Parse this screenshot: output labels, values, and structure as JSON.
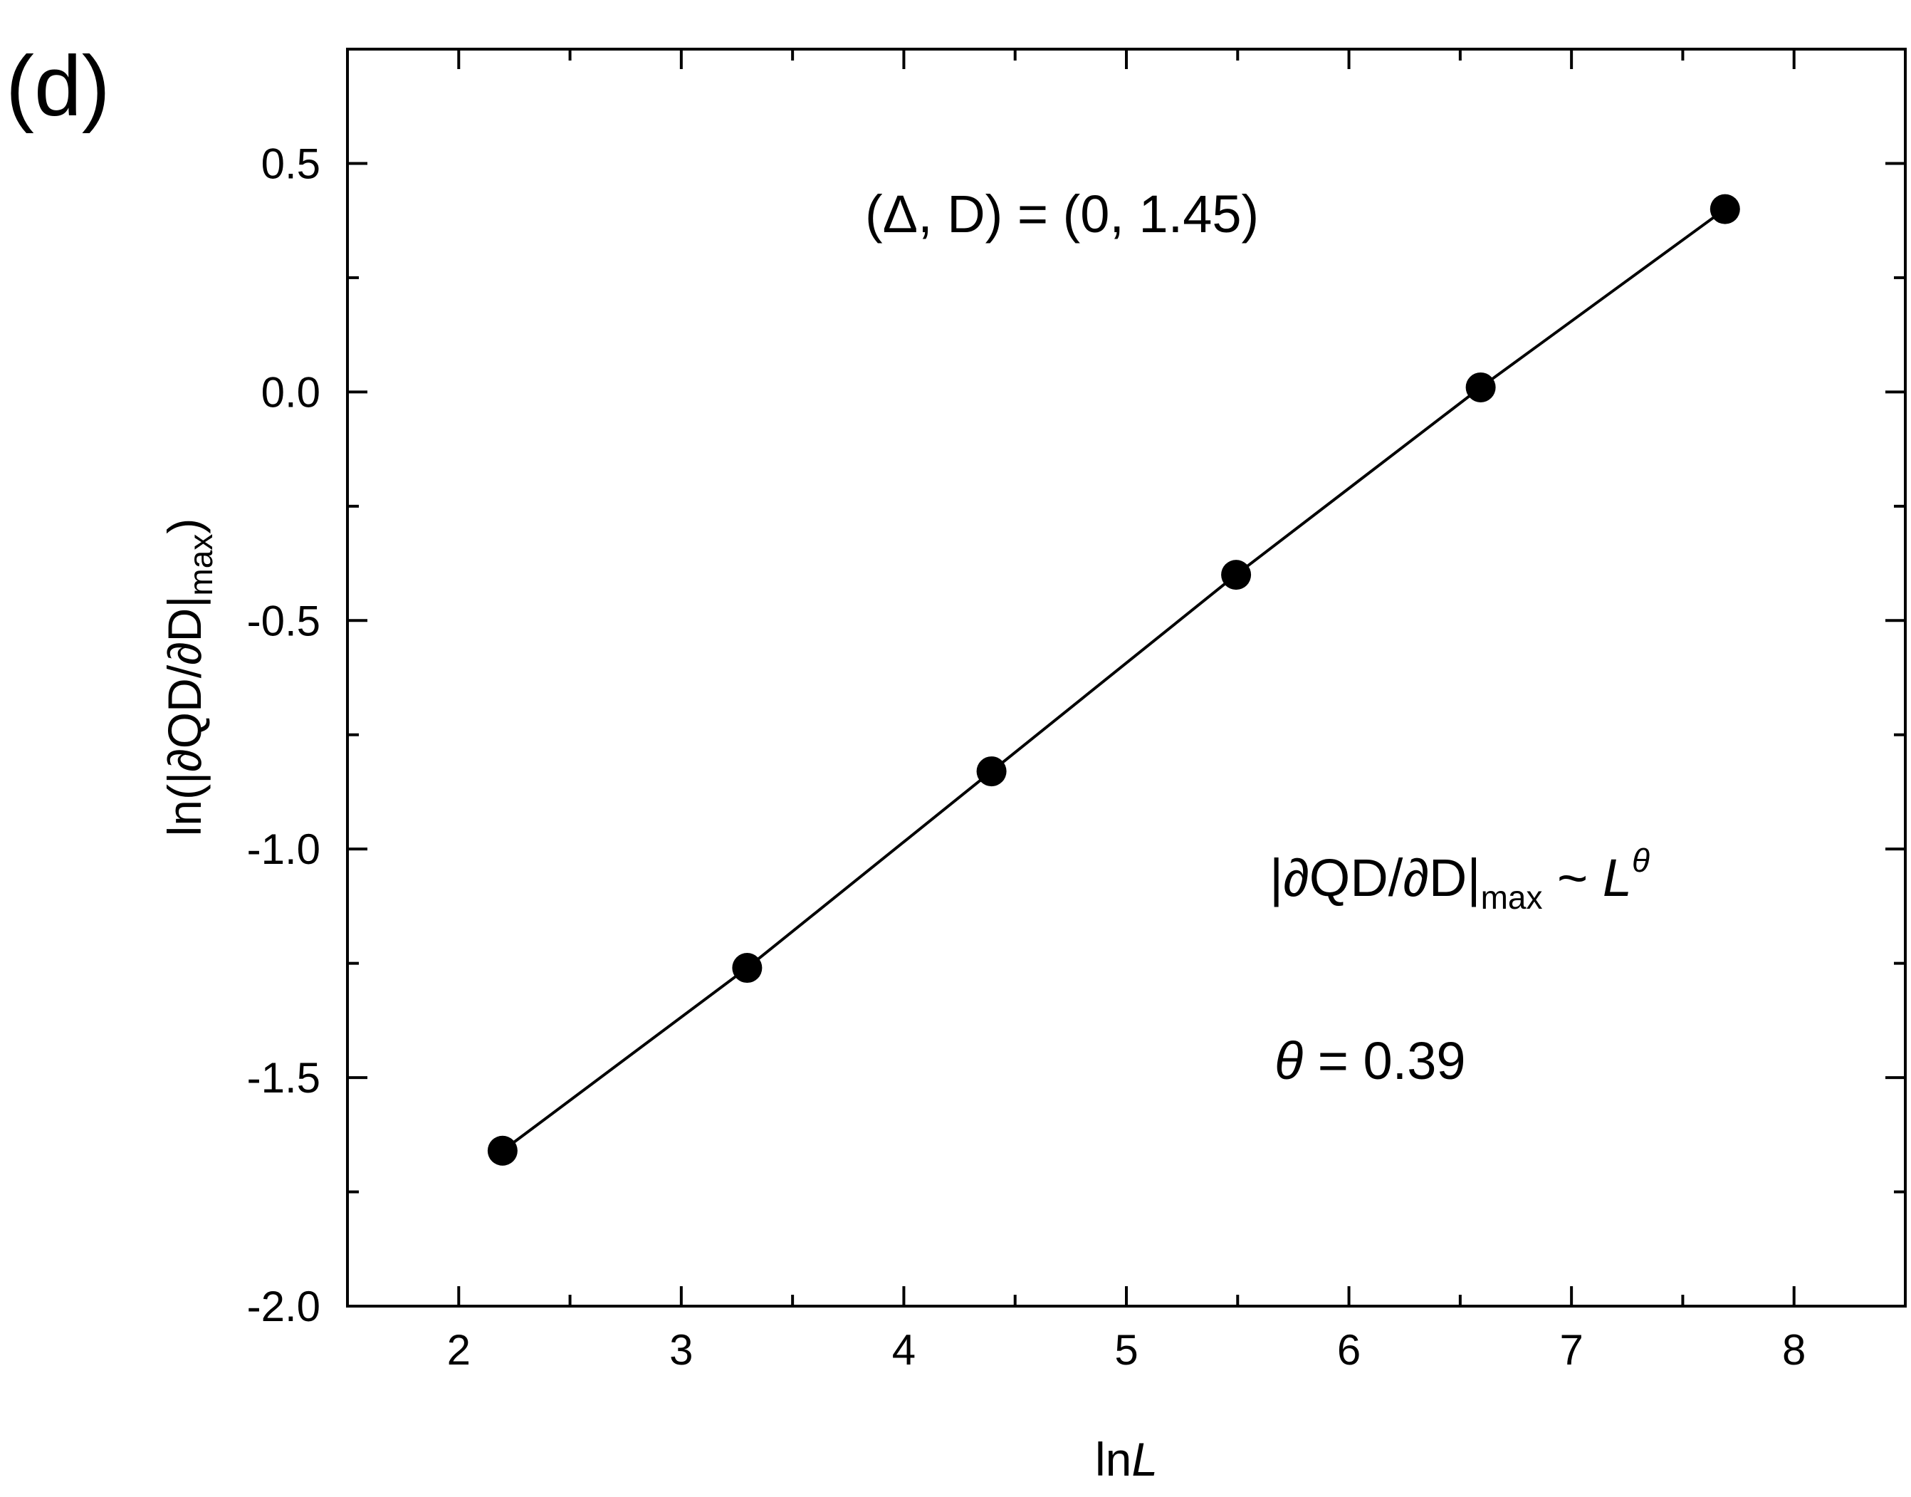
{
  "chart_data": {
    "type": "scatter",
    "panel_label": "(d)",
    "xlabel": {
      "prefix": "ln",
      "var": "L"
    },
    "ylabel": {
      "main": "ln(|∂QD/∂D|",
      "sub": "max",
      "close": ")"
    },
    "xlim": [
      1.5,
      8.5
    ],
    "ylim": [
      -2.0,
      0.75
    ],
    "x_ticks": [
      2,
      3,
      4,
      5,
      6,
      7,
      8
    ],
    "x_tick_labels": [
      "2",
      "3",
      "4",
      "5",
      "6",
      "7",
      "8"
    ],
    "y_ticks": [
      0.5,
      0.0,
      -0.5,
      -1.0,
      -1.5,
      -2.0
    ],
    "y_tick_labels": [
      "0.5",
      "0.0",
      "-0.5",
      "-1.0",
      "-1.5",
      "-2.0"
    ],
    "x_minor_ticks": [
      2.5,
      3.5,
      4.5,
      5.5,
      6.5,
      7.5
    ],
    "y_minor_ticks": [
      0.25,
      -0.25,
      -0.75,
      -1.25,
      -1.75
    ],
    "grid": false,
    "series": [
      {
        "marker": "circle",
        "connected": true,
        "color": "#000000",
        "x": [
          2.197,
          3.296,
          4.394,
          5.493,
          6.592,
          7.69
        ],
        "y": [
          -1.66,
          -1.26,
          -0.83,
          -0.4,
          0.01,
          0.4
        ]
      }
    ],
    "annotations": {
      "params": "(Δ, D) = (0, 1.45)",
      "scaling": {
        "main": "|∂QD/∂D|",
        "sub": "max",
        "tilde": " ~ ",
        "L": "L",
        "exp": "θ"
      },
      "theta": {
        "symbol": "θ",
        "value": " = 0.39"
      }
    }
  }
}
